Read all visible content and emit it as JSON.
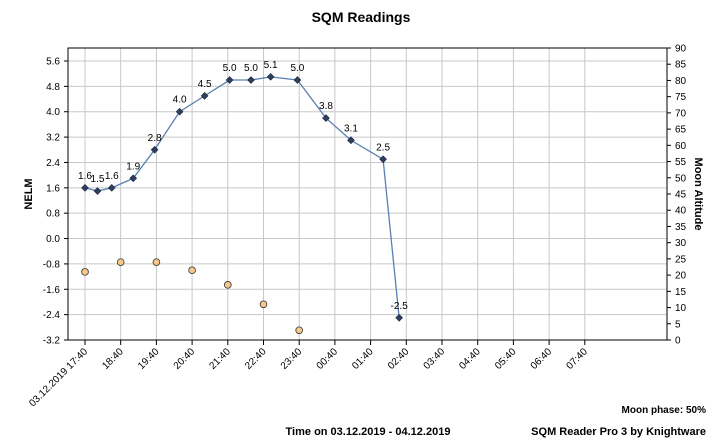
{
  "chart_data": {
    "type": "line",
    "title": "SQM Readings",
    "ylabel": "NELM",
    "y2label": "Moon Altitude",
    "xlabel": "Time on 03.12.2019 - 04.12.2019",
    "ylim": [
      -3.2,
      6.0
    ],
    "y_ticks": [
      "5.6",
      "4.8",
      "4.0",
      "3.2",
      "2.4",
      "1.6",
      "0.8",
      "0.0",
      "-0.8",
      "-1.6",
      "-2.4",
      "-3.2"
    ],
    "y2lim": [
      0,
      90
    ],
    "y2_ticks": [
      "90",
      "85",
      "80",
      "75",
      "70",
      "65",
      "60",
      "55",
      "50",
      "45",
      "40",
      "35",
      "30",
      "25",
      "20",
      "15",
      "10",
      "5",
      "0"
    ],
    "x_ticks": [
      "03.12.2019 17:40",
      "18:40",
      "19:40",
      "20:40",
      "21:40",
      "22:40",
      "23:40",
      "00:40",
      "01:40",
      "02:40",
      "03:40",
      "04:40",
      "05:40",
      "06:40",
      "07:40"
    ],
    "grid": true,
    "series": [
      {
        "name": "NELM",
        "color": "#5a7fb0",
        "x": [
          0.0,
          0.35,
          0.75,
          1.35,
          1.95,
          2.65,
          3.35,
          4.05,
          4.65,
          5.2,
          5.95,
          6.75,
          7.45,
          8.35,
          8.8
        ],
        "values": [
          1.6,
          1.5,
          1.6,
          1.9,
          2.8,
          4.0,
          4.5,
          5.0,
          5.0,
          5.1,
          5.0,
          3.8,
          3.1,
          2.5,
          -2.5
        ],
        "labels": [
          "1.6",
          "1.5",
          "1.6",
          "1.9",
          "2.8",
          "4.0",
          "4.5",
          "5.0",
          "5.0",
          "5.1",
          "5.0",
          "3.8",
          "3.1",
          "2.5",
          "-2.5"
        ]
      },
      {
        "name": "Moon Altitude",
        "axis": "right",
        "color": "#f5c78a",
        "x": [
          0.0,
          1.0,
          2.0,
          3.0,
          4.0,
          5.0,
          6.0
        ],
        "values": [
          21,
          24,
          24,
          21.5,
          17,
          11,
          3
        ]
      }
    ]
  },
  "footer": {
    "moon_phase": "Moon phase: 50%",
    "time_range": "Time on 03.12.2019 - 04.12.2019",
    "credit": "SQM Reader Pro 3 by Knightware"
  }
}
